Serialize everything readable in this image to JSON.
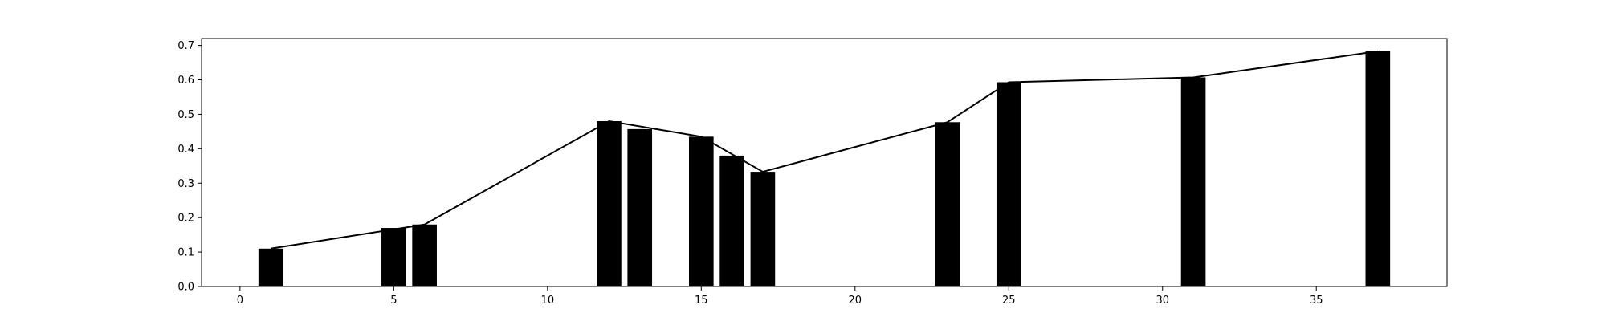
{
  "chart_data": {
    "type": "bar",
    "title": "",
    "xlabel": "",
    "ylabel": "",
    "xlim": [
      -1.25,
      39.25
    ],
    "ylim": [
      0,
      0.72
    ],
    "grid": false,
    "bar_color": "#000000",
    "line_color": "#000000",
    "x_ticks": [
      0,
      5,
      10,
      15,
      20,
      25,
      30,
      35
    ],
    "y_ticks": [
      0.0,
      0.1,
      0.2,
      0.3,
      0.4,
      0.5,
      0.6,
      0.7
    ],
    "x_tick_labels": [
      "0",
      "5",
      "10",
      "15",
      "20",
      "25",
      "30",
      "35"
    ],
    "y_tick_labels": [
      "0.0",
      "0.1",
      "0.2",
      "0.3",
      "0.4",
      "0.5",
      "0.6",
      "0.7"
    ],
    "bars": [
      {
        "x": 1,
        "value": 0.11
      },
      {
        "x": 5,
        "value": 0.17
      },
      {
        "x": 6,
        "value": 0.18
      },
      {
        "x": 12,
        "value": 0.48
      },
      {
        "x": 13,
        "value": 0.457
      },
      {
        "x": 15,
        "value": 0.435
      },
      {
        "x": 16,
        "value": 0.38
      },
      {
        "x": 17,
        "value": 0.333
      },
      {
        "x": 23,
        "value": 0.477
      },
      {
        "x": 25,
        "value": 0.593
      },
      {
        "x": 31,
        "value": 0.607
      },
      {
        "x": 37,
        "value": 0.683
      }
    ],
    "line": {
      "x": [
        1,
        6,
        12,
        15,
        17,
        23,
        25,
        31,
        37
      ],
      "y": [
        0.11,
        0.18,
        0.48,
        0.435,
        0.333,
        0.477,
        0.593,
        0.607,
        0.683
      ]
    }
  }
}
